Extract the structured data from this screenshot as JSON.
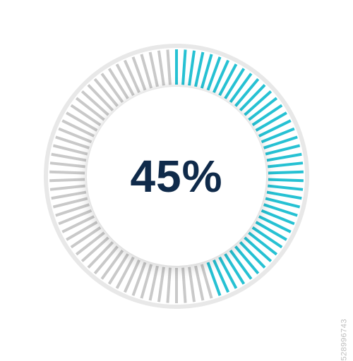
{
  "gauge": {
    "type": "radial-progress",
    "percent": 45,
    "label": "45%",
    "tick_count": 90,
    "tick_inner_radius": 130,
    "tick_outer_radius": 180,
    "tick_width": 4,
    "start_angle_deg": 0,
    "sweep_clockwise": true,
    "active_color": "#26c1d3",
    "inactive_color": "#c9c9c9",
    "outer_ring_color": "#e8e8e8",
    "outer_ring_radius": 185,
    "outer_ring_width": 6,
    "inner_disc_diameter": 254,
    "inner_disc_color": "#ffffff",
    "inner_disc_shadow": "0 4px 18px rgba(0,0,0,0.18), 0 -2px 6px rgba(0,0,0,0.06)",
    "center_text_color": "#0f2a4a",
    "center_text_fontsize": 64,
    "background_color": "#ffffff",
    "svg_size": 380
  },
  "watermark": {
    "text": "528996743"
  }
}
